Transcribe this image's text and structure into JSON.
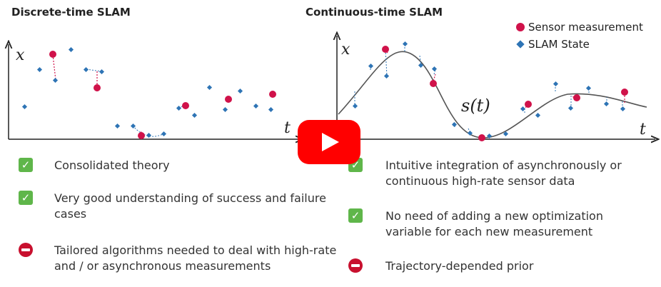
{
  "left_panel": {
    "title": "Discrete-time SLAM",
    "y_axis_label": "x",
    "x_axis_label": "t",
    "pros_cons": [
      {
        "kind": "pro",
        "lines": [
          "Consolidated theory"
        ]
      },
      {
        "kind": "pro",
        "lines": [
          "Very good understanding of success and failure",
          "cases"
        ]
      },
      {
        "kind": "con",
        "lines": [
          "Tailored algorithms needed to deal with high-rate",
          "and / or asynchronous measurements"
        ]
      }
    ]
  },
  "right_panel": {
    "title": "Continuous-time SLAM",
    "y_axis_label": "x",
    "x_axis_label": "t",
    "curve_label": "s(t)",
    "legend": [
      {
        "label": "Sensor measurement",
        "marker": "circle",
        "color": "#d0124a"
      },
      {
        "label": "SLAM State",
        "marker": "diamond",
        "color": "#2e74b5"
      }
    ],
    "pros_cons": [
      {
        "kind": "pro",
        "lines": [
          "Intuitive integration of asynchronously or",
          "continuous high-rate sensor data"
        ]
      },
      {
        "kind": "pro",
        "lines": [
          "No need of adding a new optimization",
          "variable for each new measurement"
        ]
      },
      {
        "kind": "con",
        "lines": [
          "Trajectory-depended prior"
        ]
      }
    ]
  },
  "video": {
    "icon": "youtube-play-icon",
    "color": "#ff0000"
  },
  "colors": {
    "measurement": "#d0124a",
    "state": "#2e74b5",
    "curve": "#555555"
  }
}
